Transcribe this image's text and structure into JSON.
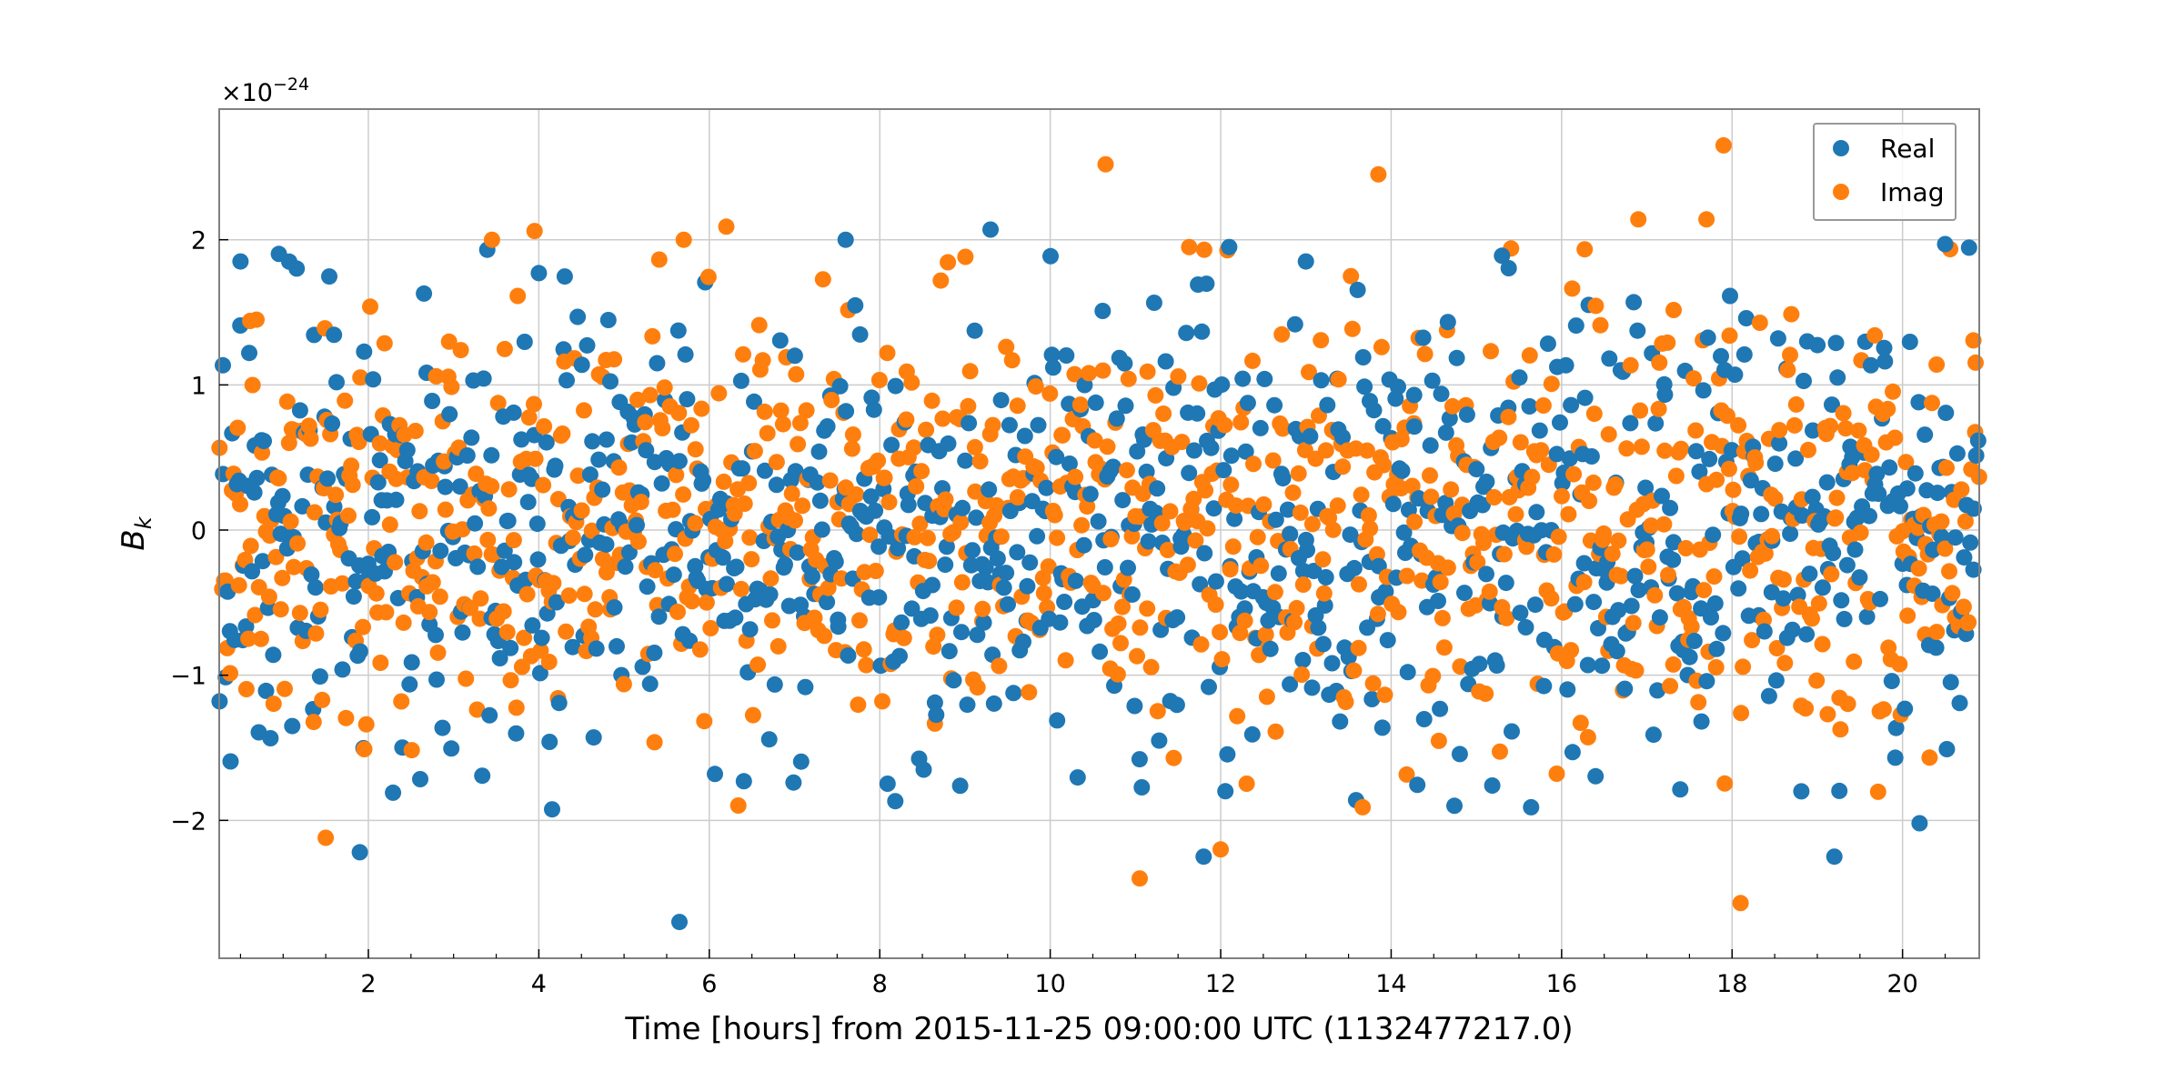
{
  "chart_data": {
    "type": "scatter",
    "title": "",
    "xlabel": "Time [hours] from 2015-11-25 09:00:00 UTC (1132477217.0)",
    "ylabel_main": "B",
    "ylabel_sub": "k",
    "y_multiplier_base": "×10",
    "y_multiplier_exponent": "−24",
    "xlim": [
      0.25,
      20.9
    ],
    "ylim": [
      -2.95,
      2.9
    ],
    "x_ticks": [
      2,
      4,
      6,
      8,
      10,
      12,
      14,
      16,
      18,
      20
    ],
    "x_tick_labels": [
      "2",
      "4",
      "6",
      "8",
      "10",
      "12",
      "14",
      "16",
      "18",
      "20"
    ],
    "y_ticks": [
      -2,
      -1,
      0,
      1,
      2
    ],
    "y_tick_labels": [
      "−2",
      "−1",
      "0",
      "1",
      "2"
    ],
    "x_minor_step": 0.5,
    "grid": true,
    "legend_position": "top-right",
    "series": [
      {
        "name": "Real",
        "color": "#1f77b4",
        "points_count": 950,
        "spread_sigma": 0.78,
        "notable_points": [
          [
            5.65,
            -2.7
          ],
          [
            1.9,
            -2.22
          ],
          [
            11.8,
            -2.25
          ],
          [
            19.2,
            -2.25
          ],
          [
            20.2,
            -2.02
          ],
          [
            9.3,
            2.07
          ],
          [
            7.6,
            2.0
          ],
          [
            0.5,
            1.85
          ],
          [
            20.5,
            1.97
          ],
          [
            15.3,
            1.89
          ],
          [
            12.1,
            1.95
          ],
          [
            13.0,
            1.85
          ],
          [
            4.0,
            1.77
          ]
        ]
      },
      {
        "name": "Imag",
        "color": "#ff7f0e",
        "points_count": 950,
        "spread_sigma": 0.72,
        "notable_points": [
          [
            17.9,
            2.65
          ],
          [
            10.65,
            2.52
          ],
          [
            13.85,
            2.45
          ],
          [
            18.1,
            -2.57
          ],
          [
            11.05,
            -2.4
          ],
          [
            12.0,
            -2.2
          ],
          [
            1.5,
            -2.12
          ],
          [
            16.9,
            2.14
          ],
          [
            17.7,
            2.14
          ],
          [
            6.2,
            2.09
          ],
          [
            3.95,
            2.06
          ],
          [
            5.7,
            2.0
          ],
          [
            3.45,
            2.0
          ]
        ]
      }
    ]
  }
}
